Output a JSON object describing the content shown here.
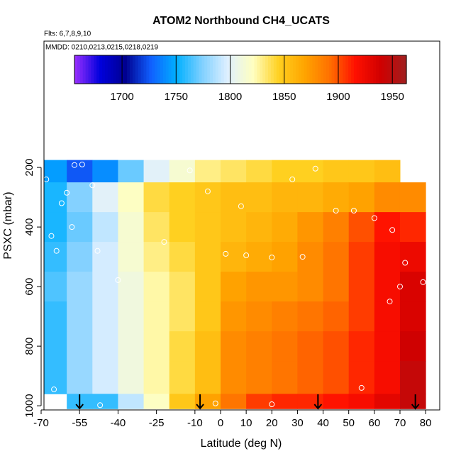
{
  "chart_data": {
    "type": "heatmap",
    "title": "ATOM2 Northbound CH4_UCATS",
    "subtitle": "Flts: 6,7,8,9,10",
    "annotation": "MMDD: 0210,0213,0215,0218,0219",
    "x_label": "Latitude (deg N)",
    "y_label": "PSXC (mbar)",
    "xlim": [
      -70,
      85.5
    ],
    "xticks": [
      -70,
      -55,
      -40,
      -25,
      -10,
      0,
      10,
      20,
      30,
      40,
      50,
      60,
      70,
      80
    ],
    "ylim": [
      1014,
      -224
    ],
    "yticks": [
      200,
      400,
      600,
      800,
      1000
    ],
    "zlim": [
      1656,
      1963
    ],
    "zticks": [
      1700,
      1750,
      1800,
      1850,
      1900,
      1950
    ],
    "colors": [
      "#9b30ff",
      "#0000dd",
      "#000090",
      "#1060ff",
      "#00b0ff",
      "#80d0ff",
      "#dff0ff",
      "#ffffc0",
      "#ffd020",
      "#ffa500",
      "#ff7000",
      "#ff1000",
      "#d00000",
      "#a02020"
    ],
    "x_edges": [
      -70,
      -60,
      -50,
      -40,
      -30,
      -20,
      -10,
      0,
      10,
      20,
      30,
      40,
      50,
      60,
      70,
      80
    ],
    "y_edges": [
      175,
      250,
      350,
      450,
      550,
      650,
      750,
      850,
      960,
      1010
    ],
    "z": [
      [
        1745,
        1725,
        1740,
        1770,
        1800,
        1815,
        1830,
        1835,
        1840,
        1845,
        1845,
        1850,
        1850,
        1855,
        null
      ],
      [
        1755,
        1775,
        1800,
        1820,
        1840,
        1845,
        1850,
        1855,
        1855,
        1860,
        1860,
        1865,
        1870,
        1880,
        1880
      ],
      [
        1755,
        1770,
        1790,
        1815,
        1835,
        1845,
        1850,
        1855,
        1860,
        1865,
        1875,
        1885,
        1900,
        1915,
        1910
      ],
      [
        1760,
        1775,
        1795,
        1815,
        1830,
        1840,
        1850,
        1860,
        1865,
        1870,
        1880,
        1890,
        1905,
        1920,
        1925
      ],
      [
        1765,
        1780,
        1795,
        1810,
        1825,
        1835,
        1850,
        1870,
        1875,
        1875,
        1880,
        1890,
        1905,
        1920,
        1935
      ],
      [
        1760,
        1780,
        1795,
        1810,
        1825,
        1835,
        1850,
        1875,
        1880,
        1885,
        1890,
        1895,
        1905,
        1920,
        1935
      ],
      [
        1760,
        1780,
        1795,
        1810,
        1825,
        1840,
        1855,
        1880,
        1885,
        1890,
        1895,
        1900,
        1910,
        1920,
        1940
      ],
      [
        1760,
        1780,
        1795,
        1810,
        1825,
        1840,
        1855,
        1880,
        1885,
        1890,
        1895,
        1900,
        1910,
        1920,
        1945
      ],
      [
        null,
        1760,
        1760,
        1790,
        1820,
        1850,
        1870,
        1890,
        1905,
        1910,
        1910,
        1915,
        1920,
        1930,
        1945
      ]
    ],
    "points": {
      "x": [
        -57,
        -54,
        -68,
        -60,
        -50,
        -62,
        -58,
        -66,
        -64,
        -48,
        -40,
        -22,
        -12,
        -5,
        2,
        8,
        20,
        28,
        37,
        45,
        52,
        60,
        67,
        72,
        79,
        70,
        66,
        55,
        20,
        -2,
        -47,
        -65,
        32,
        10
      ],
      "y": [
        192,
        190,
        240,
        285,
        260,
        320,
        400,
        430,
        480,
        480,
        578,
        450,
        210,
        280,
        490,
        330,
        502,
        240,
        204,
        345,
        345,
        370,
        410,
        520,
        585,
        600,
        650,
        940,
        995,
        992,
        998,
        945,
        500,
        495
      ]
    },
    "arrows": [
      -55,
      -8,
      38,
      76
    ]
  }
}
